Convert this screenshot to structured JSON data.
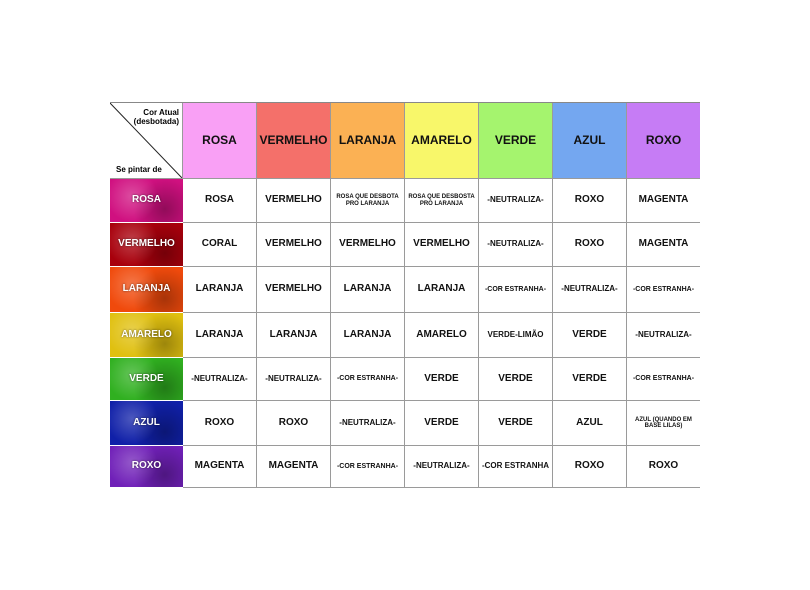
{
  "corner": {
    "top_label_line1": "Cor Atual",
    "top_label_line2": "(desbotada)",
    "bottom_label": "Se pintar de"
  },
  "columns": [
    {
      "label": "ROSA",
      "color": "#f9a0f5"
    },
    {
      "label": "VERMELHO",
      "color": "#f4706a"
    },
    {
      "label": "LARANJA",
      "color": "#fbb154"
    },
    {
      "label": "AMARELO",
      "color": "#f8f76a"
    },
    {
      "label": "VERDE",
      "color": "#a5f46e"
    },
    {
      "label": "AZUL",
      "color": "#74a7f0"
    },
    {
      "label": "ROXO",
      "color": "#c67cf5"
    }
  ],
  "rows": [
    {
      "label": "ROSA",
      "color": "#d01080",
      "cells": [
        "ROSA",
        "VERMELHO",
        "ROSA QUE DESBOTA PRO LARANJA",
        "ROSA QUE DESBOSTA PRO LARANJA",
        "-NEUTRALIZA-",
        "ROXO",
        "MAGENTA"
      ]
    },
    {
      "label": "VERMELHO",
      "color": "#a8000c",
      "cells": [
        "CORAL",
        "VERMELHO",
        "VERMELHO",
        "VERMELHO",
        "-NEUTRALIZA-",
        "ROXO",
        "MAGENTA"
      ]
    },
    {
      "label": "LARANJA",
      "color": "#f04a0c",
      "cells": [
        "LARANJA",
        "VERMELHO",
        "LARANJA",
        "LARANJA",
        "-COR ESTRANHA-",
        "-NEUTRALIZA-",
        "-COR ESTRANHA-"
      ]
    },
    {
      "label": "AMARELO",
      "color": "#e0c010",
      "cells": [
        "LARANJA",
        "LARANJA",
        "LARANJA",
        "AMARELO",
        "VERDE-LIMÃO",
        "VERDE",
        "-NEUTRALIZA-"
      ]
    },
    {
      "label": "VERDE",
      "color": "#30b020",
      "cells": [
        "-NEUTRALIZA-",
        "-NEUTRALIZA-",
        "-COR ESTRANHA-",
        "VERDE",
        "VERDE",
        "VERDE",
        "-COR ESTRANHA-"
      ]
    },
    {
      "label": "AZUL",
      "color": "#1020a8",
      "cells": [
        "ROXO",
        "ROXO",
        "-NEUTRALIZA-",
        "VERDE",
        "VERDE",
        "AZUL",
        "AZUL (QUANDO EM BASE LILAS)"
      ]
    },
    {
      "label": "ROXO",
      "color": "#7020b8",
      "cells": [
        "MAGENTA",
        "MAGENTA",
        "-COR ESTRANHA-",
        "-NEUTRALIZA-",
        "-COR ESTRANHA",
        "ROXO",
        "ROXO"
      ]
    }
  ]
}
